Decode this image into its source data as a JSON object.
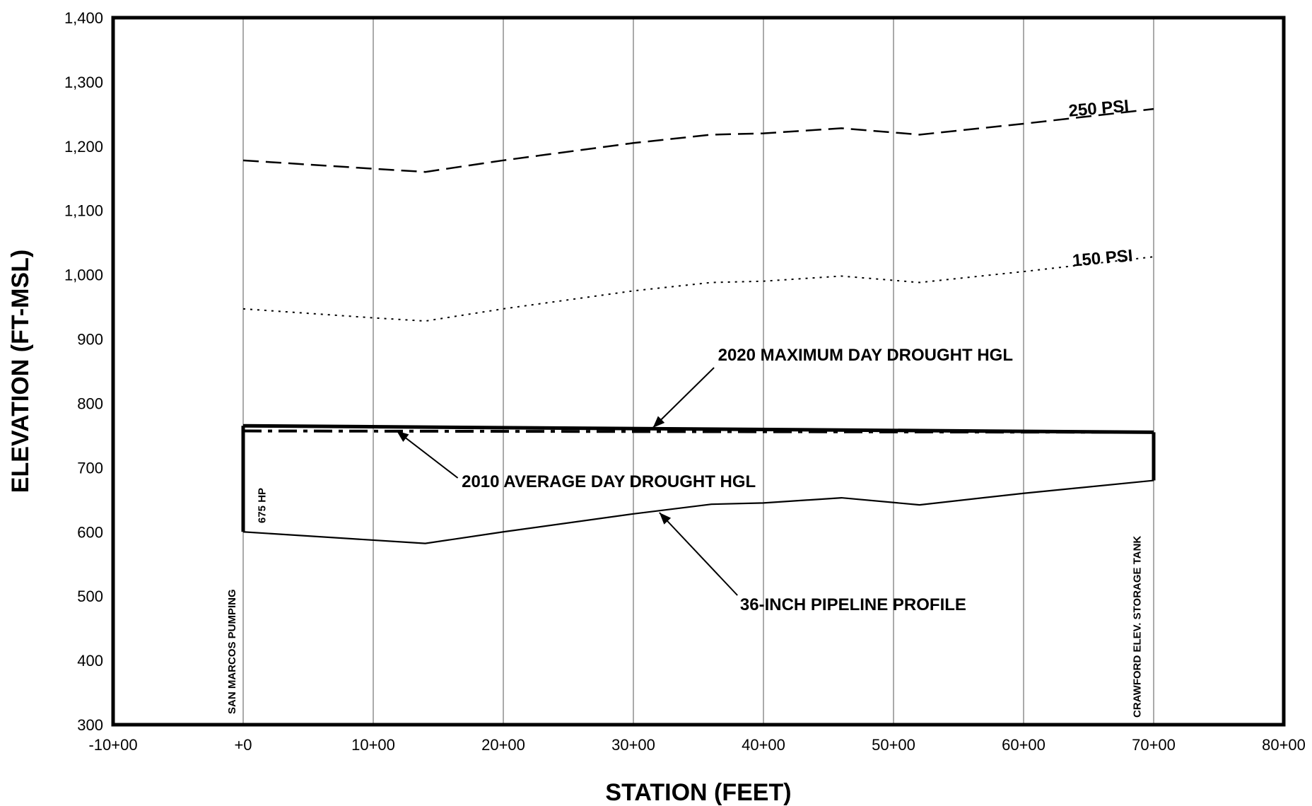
{
  "chart_data": {
    "type": "line",
    "xlabel": "STATION (FEET)",
    "ylabel": "ELEVATION (FT-MSL)",
    "xlim": [
      -10,
      80
    ],
    "ylim": [
      300,
      1400
    ],
    "x_ticks": [
      -10,
      0,
      10,
      20,
      30,
      40,
      50,
      60,
      70,
      80
    ],
    "x_tick_labels": [
      "-10+00",
      "+0",
      "10+00",
      "20+00",
      "30+00",
      "40+00",
      "50+00",
      "60+00",
      "70+00",
      "80+00"
    ],
    "y_ticks": [
      300,
      400,
      500,
      600,
      700,
      800,
      900,
      1000,
      1100,
      1200,
      1300,
      1400
    ],
    "y_tick_labels": [
      "300",
      "400",
      "500",
      "600",
      "700",
      "800",
      "900",
      "1,000",
      "1,100",
      "1,200",
      "1,300",
      "1,400"
    ],
    "grid": "vertical",
    "series": [
      {
        "name": "250 PSI",
        "style": "dashed",
        "x": [
          0,
          10,
          14,
          20,
          30,
          36,
          40,
          46,
          52,
          60,
          70
        ],
        "y": [
          1178,
          1165,
          1160,
          1178,
          1205,
          1218,
          1220,
          1228,
          1218,
          1235,
          1258
        ]
      },
      {
        "name": "150 PSI",
        "style": "dotted",
        "x": [
          0,
          10,
          14,
          20,
          30,
          36,
          40,
          46,
          52,
          60,
          70
        ],
        "y": [
          947,
          933,
          928,
          947,
          975,
          988,
          990,
          998,
          988,
          1005,
          1028
        ]
      },
      {
        "name": "2020 MAXIMUM DAY DROUGHT HGL",
        "style": "solid-thick",
        "x": [
          0,
          70
        ],
        "y": [
          765,
          755
        ]
      },
      {
        "name": "2010 AVERAGE DAY DROUGHT HGL",
        "style": "dash-dot",
        "x": [
          0,
          70
        ],
        "y": [
          757,
          755
        ]
      },
      {
        "name": "36-INCH PIPELINE PROFILE",
        "style": "solid",
        "x": [
          0,
          14,
          20,
          30,
          36,
          40,
          46,
          52,
          60,
          70
        ],
        "y": [
          600,
          582,
          600,
          628,
          643,
          645,
          653,
          642,
          660,
          680
        ]
      }
    ],
    "annotations": {
      "psi250": "250 PSI",
      "psi150": "150 PSI",
      "hgl2020": "2020 MAXIMUM DAY DROUGHT HGL",
      "hgl2010": "2010 AVERAGE DAY DROUGHT HGL",
      "pipeline": "36-INCH PIPELINE PROFILE",
      "pump": "SAN MARCOS PUMPING",
      "pump_hp": "675 HP",
      "tank": "CRAWFORD ELEV. STORAGE TANK"
    }
  }
}
